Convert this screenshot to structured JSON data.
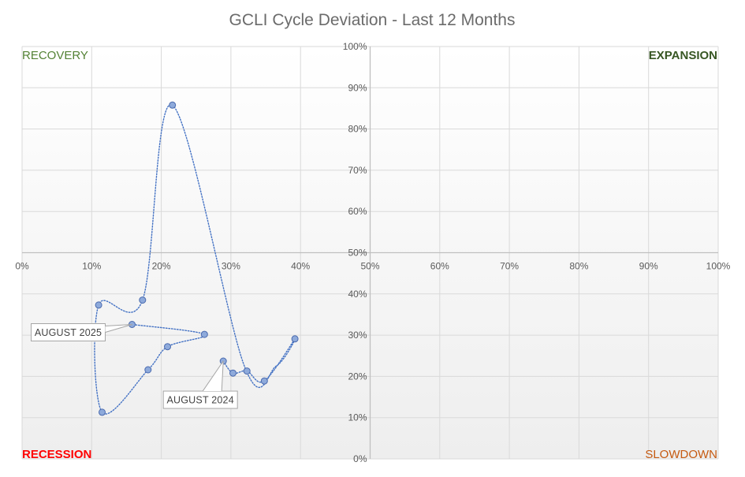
{
  "chart_data": {
    "type": "scatter",
    "title": "GCLI Cycle Deviation - Last 12 Months",
    "xlabel": "",
    "ylabel": "",
    "xlim": [
      0,
      100
    ],
    "ylim": [
      0,
      100
    ],
    "grid": true,
    "x_ticks": [
      "0%",
      "10%",
      "20%",
      "30%",
      "40%",
      "50%",
      "60%",
      "70%",
      "80%",
      "90%",
      "100%"
    ],
    "y_ticks": [
      "0%",
      "10%",
      "20%",
      "30%",
      "40%",
      "50%",
      "60%",
      "70%",
      "80%",
      "90%",
      "100%"
    ],
    "quadrants": {
      "top_left": "RECOVERY",
      "top_right": "EXPANSION",
      "bottom_left": "RECESSION",
      "bottom_right": "SLOWDOWN"
    },
    "quadrant_colors": {
      "recovery": "#548235",
      "expansion": "#375623",
      "recession": "#ff0000",
      "slowdown": "#c55a11"
    },
    "series_color": "#4472c4",
    "series": [
      {
        "name": "GCLI",
        "x": [
          28.9,
          30.3,
          32.3,
          34.8,
          39.2,
          36.5,
          32.0,
          21.6,
          17.3,
          11.0,
          11.5,
          18.1,
          20.9,
          26.2,
          15.8
        ],
        "y": [
          23.7,
          20.8,
          21.3,
          18.9,
          29.1,
          22.5,
          22.2,
          85.8,
          38.5,
          37.3,
          11.3,
          21.6,
          27.2,
          30.2,
          32.6
        ],
        "marker": [
          true,
          true,
          true,
          true,
          true,
          false,
          false,
          true,
          true,
          true,
          true,
          true,
          true,
          true,
          true
        ]
      }
    ],
    "annotations": [
      {
        "text": "AUGUST 2024",
        "point_index": 0,
        "placement": "below"
      },
      {
        "text": "AUGUST 2025",
        "point_index": 14,
        "placement": "left"
      }
    ]
  }
}
